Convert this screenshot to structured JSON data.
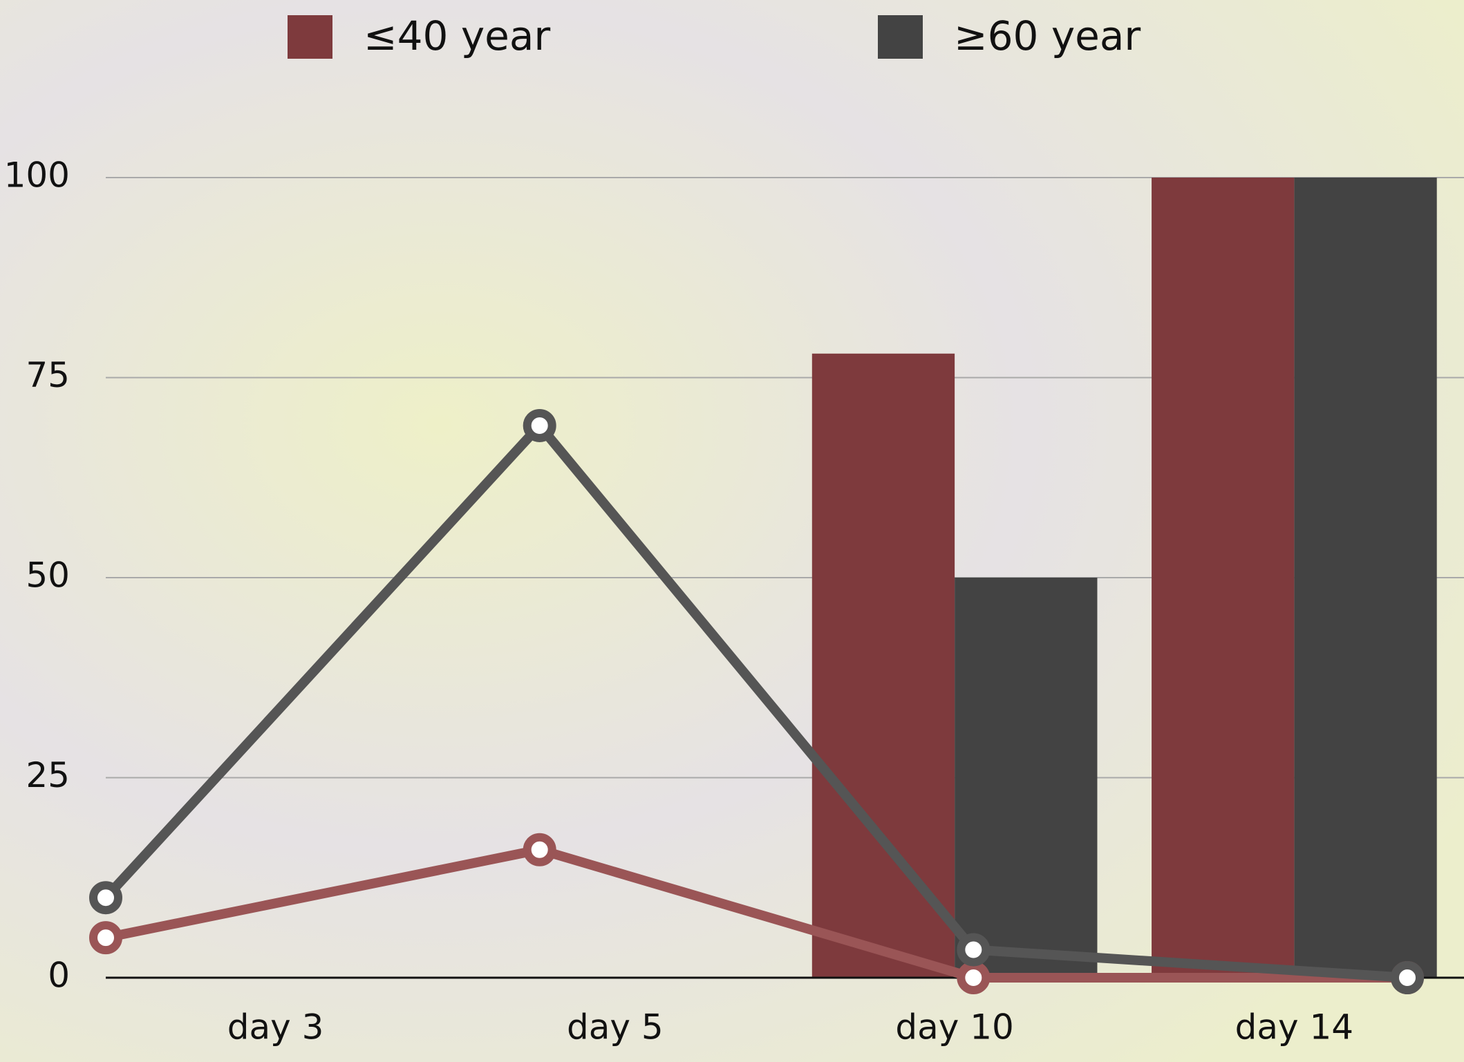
{
  "chart_data": {
    "type": "bar",
    "categories": [
      "day 3",
      "day 5",
      "day 10",
      "day 14"
    ],
    "series": [
      {
        "name": "≤40 year",
        "color": "#7e3a3d",
        "values": [
          null,
          null,
          78,
          100
        ]
      },
      {
        "name": "≥60 year",
        "color": "#434343",
        "values": [
          null,
          null,
          50,
          100
        ]
      }
    ],
    "lines": [
      {
        "color": "#9a5556",
        "values": [
          5,
          16,
          0,
          0
        ]
      },
      {
        "color": "#555555",
        "values": [
          10,
          69,
          3.5,
          0
        ]
      }
    ],
    "ylim": [
      0,
      100
    ],
    "yticks": [
      0,
      25,
      50,
      75,
      100
    ],
    "grid": true
  }
}
